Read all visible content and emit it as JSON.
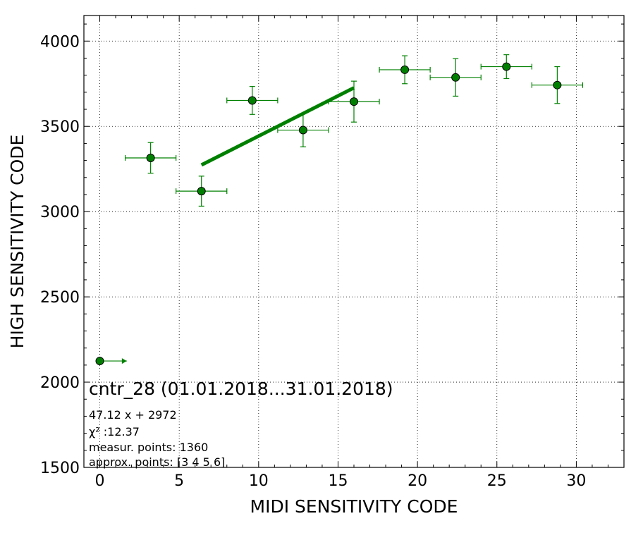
{
  "chart_data": {
    "type": "scatter",
    "title": "",
    "xlabel": "MIDI SENSITIVITY CODE",
    "ylabel": "HIGH SENSITIVITY CODE",
    "xlim": [
      -1,
      33
    ],
    "ylim": [
      1500,
      4150
    ],
    "xticks": [
      "0",
      "5",
      "10",
      "15",
      "20",
      "25",
      "30"
    ],
    "yticks": [
      "1500",
      "2000",
      "2500",
      "3000",
      "3500",
      "4000"
    ],
    "grid": true,
    "colors": {
      "marker": "#008000",
      "errorbar": "#008000",
      "fit": "#008000",
      "marker_edge": "#000000"
    },
    "points": [
      {
        "x": 3.2,
        "y": 3315,
        "xerr": 1.6,
        "yerr": 90
      },
      {
        "x": 6.4,
        "y": 3120,
        "xerr": 1.6,
        "yerr": 88
      },
      {
        "x": 9.6,
        "y": 3652,
        "xerr": 1.6,
        "yerr": 82
      },
      {
        "x": 12.8,
        "y": 3478,
        "xerr": 1.6,
        "yerr": 98
      },
      {
        "x": 16.0,
        "y": 3645,
        "xerr": 1.6,
        "yerr": 120
      },
      {
        "x": 19.2,
        "y": 3832,
        "xerr": 1.6,
        "yerr": 82
      },
      {
        "x": 22.4,
        "y": 3787,
        "xerr": 1.6,
        "yerr": 110
      },
      {
        "x": 25.6,
        "y": 3850,
        "xerr": 1.6,
        "yerr": 70
      },
      {
        "x": 28.8,
        "y": 3742,
        "xerr": 1.6,
        "yerr": 108
      }
    ],
    "zero_point": {
      "x": 0,
      "y": 2124,
      "arrow_to_x": 1.7
    },
    "fit": {
      "slope": 47.12,
      "intercept": 2972,
      "x_start": 6.4,
      "x_end": 16.0
    },
    "annotation": {
      "title": "cntr_28 (01.01.2018...31.01.2018)",
      "lines": [
        "47.12 x + 2972",
        "χ² :12.37",
        "measur. points: 1360",
        "approx. points: [3 4 5 6]"
      ]
    }
  }
}
